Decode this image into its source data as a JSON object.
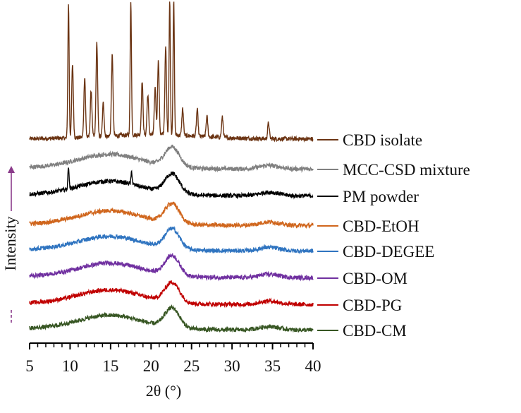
{
  "chart_data": {
    "type": "line",
    "title": "",
    "xlabel": "2θ (°)",
    "ylabel": "Intensity",
    "xlim": [
      5,
      40
    ],
    "x_ticks": [
      5,
      10,
      15,
      20,
      25,
      30,
      35,
      40
    ],
    "grid": false,
    "legend": "right, label beside each stacked trace",
    "series": [
      {
        "name": "CBD isolate",
        "color": "#6b3413",
        "kind": "crystalline",
        "peaks": [
          [
            9.8,
            1.0
          ],
          [
            10.3,
            0.55
          ],
          [
            11.8,
            0.45
          ],
          [
            12.6,
            0.35
          ],
          [
            13.3,
            0.7
          ],
          [
            14.1,
            0.25
          ],
          [
            15.2,
            0.6
          ],
          [
            17.5,
            1.0
          ],
          [
            18.9,
            0.4
          ],
          [
            19.6,
            0.3
          ],
          [
            20.5,
            0.35
          ],
          [
            20.9,
            0.55
          ],
          [
            21.8,
            0.65
          ],
          [
            22.3,
            1.0
          ],
          [
            22.8,
            1.0
          ],
          [
            23.9,
            0.2
          ],
          [
            25.7,
            0.2
          ],
          [
            26.9,
            0.15
          ],
          [
            28.8,
            0.15
          ],
          [
            34.5,
            0.12
          ]
        ]
      },
      {
        "name": "MCC-CSD mixture",
        "color": "#808080",
        "kind": "amorphous",
        "sharp_peaks": [],
        "amorphous_intensity": 1.0
      },
      {
        "name": "PM powder",
        "color": "#000000",
        "kind": "amorphous",
        "sharp_peaks": [
          [
            9.8,
            0.55
          ],
          [
            17.6,
            0.3
          ]
        ],
        "amorphous_intensity": 1.0
      },
      {
        "name": "CBD-EtOH",
        "color": "#d0661d",
        "kind": "amorphous",
        "sharp_peaks": [],
        "amorphous_intensity": 1.0
      },
      {
        "name": "CBD-DEGEE",
        "color": "#2f74c0",
        "kind": "amorphous",
        "sharp_peaks": [],
        "amorphous_intensity": 1.0
      },
      {
        "name": "CBD-OM",
        "color": "#7030a0",
        "kind": "amorphous",
        "sharp_peaks": [],
        "amorphous_intensity": 1.0
      },
      {
        "name": "CBD-PG",
        "color": "#c00000",
        "kind": "amorphous",
        "sharp_peaks": [],
        "amorphous_intensity": 1.0
      },
      {
        "name": "CBD-CM",
        "color": "#375623",
        "kind": "amorphous",
        "sharp_peaks": [],
        "amorphous_intensity": 1.0
      }
    ]
  }
}
